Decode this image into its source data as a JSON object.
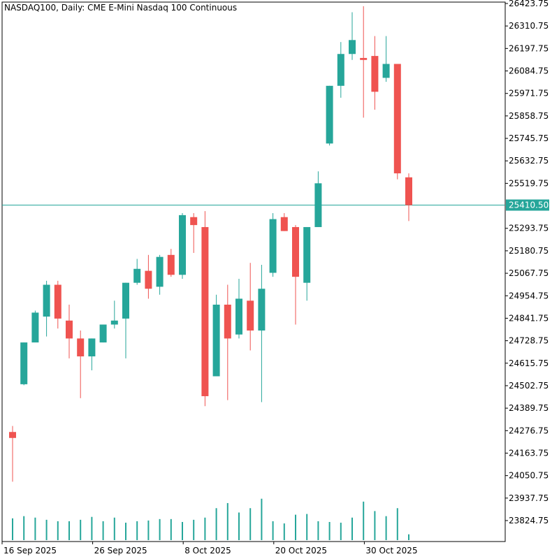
{
  "title": "NASDAQ100, Daily:  CME E-Mini Nasdaq 100 Continuous",
  "colors": {
    "up": "#26a69a",
    "down": "#ef5350",
    "axis": "#000000",
    "price_line": "#26a69a",
    "price_label_bg": "#26a69a",
    "volume": "#26a69a"
  },
  "current_price": "25410.50",
  "chart_data": {
    "type": "candlestick",
    "title": "NASDAQ100, Daily:  CME E-Mini Nasdaq 100 Continuous",
    "ylim": [
      23760,
      26430
    ],
    "y_ticks": [
      "26423.75",
      "26310.75",
      "26197.75",
      "26084.75",
      "25971.75",
      "25858.75",
      "25745.75",
      "25632.75",
      "25519.75",
      "25410.50",
      "25293.75",
      "25180.75",
      "25067.75",
      "24954.75",
      "24841.75",
      "24728.75",
      "24615.75",
      "24502.75",
      "24389.75",
      "24276.75",
      "24163.75",
      "24050.75",
      "23937.75",
      "23824.75"
    ],
    "x_tick_labels": [
      {
        "label": "16 Sep 2025",
        "index": 0
      },
      {
        "label": "26 Sep 2025",
        "index": 8
      },
      {
        "label": "8 Oct 2025",
        "index": 16
      },
      {
        "label": "20 Oct 2025",
        "index": 24
      },
      {
        "label": "30 Oct 2025",
        "index": 32
      }
    ],
    "grid": false,
    "candles": [
      {
        "o": 24270,
        "h": 24300,
        "l": 24020,
        "c": 24240
      },
      {
        "o": 24510,
        "h": 24720,
        "l": 24505,
        "c": 24720
      },
      {
        "o": 24720,
        "h": 24880,
        "l": 24725,
        "c": 24870
      },
      {
        "o": 24850,
        "h": 25030,
        "l": 24750,
        "c": 25010
      },
      {
        "o": 25010,
        "h": 25030,
        "l": 24790,
        "c": 24840
      },
      {
        "o": 24830,
        "h": 24910,
        "l": 24640,
        "c": 24740
      },
      {
        "o": 24740,
        "h": 24780,
        "l": 24440,
        "c": 24650
      },
      {
        "o": 24650,
        "h": 24740,
        "l": 24580,
        "c": 24740
      },
      {
        "o": 24720,
        "h": 24810,
        "l": 24720,
        "c": 24810
      },
      {
        "o": 24810,
        "h": 24930,
        "l": 24790,
        "c": 24830
      },
      {
        "o": 24840,
        "h": 25020,
        "l": 24640,
        "c": 25020
      },
      {
        "o": 25020,
        "h": 25140,
        "l": 25010,
        "c": 25090
      },
      {
        "o": 25080,
        "h": 25160,
        "l": 24940,
        "c": 24990
      },
      {
        "o": 25000,
        "h": 25160,
        "l": 24960,
        "c": 25150
      },
      {
        "o": 25160,
        "h": 25190,
        "l": 25050,
        "c": 25060
      },
      {
        "o": 25060,
        "h": 25370,
        "l": 25040,
        "c": 25360
      },
      {
        "o": 25350,
        "h": 25370,
        "l": 25170,
        "c": 25310
      },
      {
        "o": 25300,
        "h": 25380,
        "l": 24400,
        "c": 24450
      },
      {
        "o": 24550,
        "h": 24960,
        "l": 24550,
        "c": 24910
      },
      {
        "o": 24910,
        "h": 25010,
        "l": 24430,
        "c": 24740
      },
      {
        "o": 24760,
        "h": 25040,
        "l": 24740,
        "c": 24940
      },
      {
        "o": 24930,
        "h": 25120,
        "l": 24680,
        "c": 24780
      },
      {
        "o": 24780,
        "h": 25110,
        "l": 24420,
        "c": 24990
      },
      {
        "o": 25070,
        "h": 25370,
        "l": 25050,
        "c": 25340
      },
      {
        "o": 25350,
        "h": 25370,
        "l": 25280,
        "c": 25280
      },
      {
        "o": 25300,
        "h": 25310,
        "l": 24810,
        "c": 25050
      },
      {
        "o": 25020,
        "h": 25300,
        "l": 24930,
        "c": 25300
      },
      {
        "o": 25300,
        "h": 25580,
        "l": 25300,
        "c": 25520
      },
      {
        "o": 25720,
        "h": 26010,
        "l": 25710,
        "c": 26010
      },
      {
        "o": 26010,
        "h": 26230,
        "l": 25950,
        "c": 26170
      },
      {
        "o": 26170,
        "h": 26380,
        "l": 26140,
        "c": 26240
      },
      {
        "o": 26150,
        "h": 26410,
        "l": 25850,
        "c": 26140
      },
      {
        "o": 26160,
        "h": 26260,
        "l": 25890,
        "c": 25980
      },
      {
        "o": 26050,
        "h": 26260,
        "l": 26030,
        "c": 26120
      },
      {
        "o": 26120,
        "h": 26120,
        "l": 25540,
        "c": 25570
      },
      {
        "o": 25550,
        "h": 25570,
        "l": 25330,
        "c": 25410
      }
    ],
    "volumes": [
      0.3,
      0.33,
      0.31,
      0.28,
      0.26,
      0.26,
      0.28,
      0.32,
      0.26,
      0.31,
      0.24,
      0.26,
      0.27,
      0.29,
      0.29,
      0.25,
      0.28,
      0.31,
      0.44,
      0.51,
      0.38,
      0.44,
      0.57,
      0.26,
      0.23,
      0.35,
      0.36,
      0.26,
      0.25,
      0.24,
      0.31,
      0.53,
      0.4,
      0.33,
      0.44,
      0.08
    ]
  }
}
